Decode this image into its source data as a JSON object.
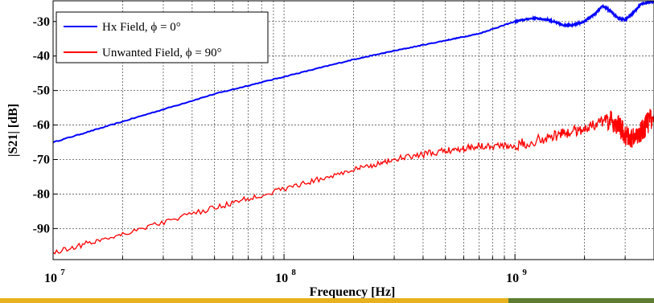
{
  "chart_data": {
    "type": "line",
    "title": "",
    "xlabel": "Frequency [Hz]",
    "ylabel": "|S21| [dB]",
    "xscale": "log",
    "xlim": [
      10000000,
      4000000000
    ],
    "ylim": [
      -99,
      -24
    ],
    "grid": true,
    "legend_position": "top-left",
    "x_tick_labels": [
      {
        "base": "10",
        "exp": "7",
        "value": 10000000
      },
      {
        "base": "10",
        "exp": "8",
        "value": 100000000
      },
      {
        "base": "10",
        "exp": "9",
        "value": 1000000000
      }
    ],
    "y_ticks": [
      -30,
      -40,
      -50,
      -60,
      -70,
      -80,
      -90
    ],
    "y_tick_labels": [
      "-30",
      "-40",
      "-50",
      "-60",
      "-70",
      "-80",
      "-90"
    ],
    "series": [
      {
        "name": "Hx Field, ϕ = 0°",
        "color": "#0000ff",
        "x": [
          10000000,
          20000000,
          50000000,
          100000000,
          200000000,
          300000000,
          500000000,
          700000000,
          1000000000,
          1200000000,
          1400000000,
          1600000000,
          1800000000,
          2000000000,
          2200000000,
          2400000000,
          2600000000,
          2800000000,
          3000000000,
          3200000000,
          3500000000,
          4000000000
        ],
        "y": [
          -65,
          -59,
          -51,
          -46,
          -41,
          -38.5,
          -35.5,
          -33.5,
          -30,
          -29,
          -29.5,
          -31,
          -31,
          -30,
          -28,
          -25.5,
          -27,
          -29,
          -29.5,
          -28,
          -25,
          -24
        ]
      },
      {
        "name": "Unwanted Field, ϕ = 90°",
        "color": "#ff0000",
        "x": [
          10000000,
          20000000,
          50000000,
          100000000,
          200000000,
          300000000,
          500000000,
          700000000,
          1000000000,
          1500000000,
          2000000000,
          2500000000,
          2800000000,
          3000000000,
          3300000000,
          3600000000,
          4000000000
        ],
        "y": [
          -97,
          -91.5,
          -84,
          -78.5,
          -73,
          -70,
          -67.5,
          -66,
          -66,
          -63,
          -61,
          -58.5,
          -60,
          -63,
          -64,
          -61,
          -57
        ]
      }
    ]
  }
}
